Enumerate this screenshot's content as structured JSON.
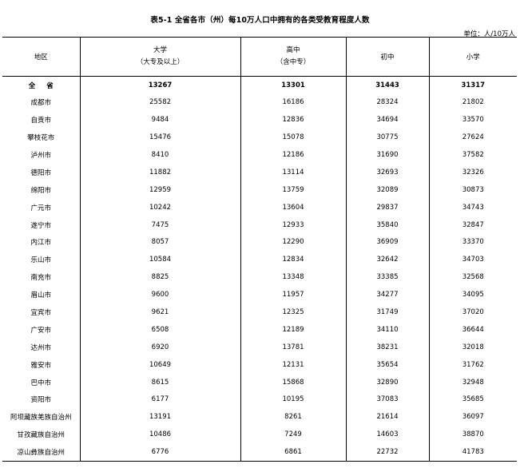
{
  "title": "表5-1 全省各市（州）每10万人口中拥有的各类受教育程度人数",
  "unit": "单位：人/10万人",
  "headers": {
    "region": "地区",
    "college_line1": "大学",
    "college_line2": "（大专及以上）",
    "senior_line1": "高中",
    "senior_line2": "（含中专）",
    "junior": "初中",
    "primary": "小学"
  },
  "rows": [
    {
      "region": "全省",
      "college": "13267",
      "senior": "13301",
      "junior": "31443",
      "primary": "31317"
    },
    {
      "region": "成都市",
      "college": "25582",
      "senior": "16186",
      "junior": "28324",
      "primary": "21802"
    },
    {
      "region": "自贡市",
      "college": "9484",
      "senior": "12836",
      "junior": "34694",
      "primary": "33570"
    },
    {
      "region": "攀枝花市",
      "college": "15476",
      "senior": "15078",
      "junior": "30775",
      "primary": "27624"
    },
    {
      "region": "泸州市",
      "college": "8410",
      "senior": "12186",
      "junior": "31690",
      "primary": "37582"
    },
    {
      "region": "德阳市",
      "college": "11882",
      "senior": "13114",
      "junior": "32693",
      "primary": "32326"
    },
    {
      "region": "绵阳市",
      "college": "12959",
      "senior": "13759",
      "junior": "32089",
      "primary": "30873"
    },
    {
      "region": "广元市",
      "college": "10242",
      "senior": "13604",
      "junior": "29837",
      "primary": "34743"
    },
    {
      "region": "遂宁市",
      "college": "7475",
      "senior": "12933",
      "junior": "35840",
      "primary": "32847"
    },
    {
      "region": "内江市",
      "college": "8057",
      "senior": "12290",
      "junior": "36909",
      "primary": "33370"
    },
    {
      "region": "乐山市",
      "college": "10584",
      "senior": "12834",
      "junior": "32642",
      "primary": "34703"
    },
    {
      "region": "南充市",
      "college": "8825",
      "senior": "13348",
      "junior": "33385",
      "primary": "32568"
    },
    {
      "region": "眉山市",
      "college": "9600",
      "senior": "11957",
      "junior": "34277",
      "primary": "34095"
    },
    {
      "region": "宜宾市",
      "college": "9621",
      "senior": "12325",
      "junior": "31749",
      "primary": "37020"
    },
    {
      "region": "广安市",
      "college": "6508",
      "senior": "12189",
      "junior": "34110",
      "primary": "36644"
    },
    {
      "region": "达州市",
      "college": "6920",
      "senior": "13781",
      "junior": "38231",
      "primary": "32018"
    },
    {
      "region": "雅安市",
      "college": "10649",
      "senior": "12131",
      "junior": "35654",
      "primary": "31762"
    },
    {
      "region": "巴中市",
      "college": "8615",
      "senior": "15868",
      "junior": "32890",
      "primary": "32948"
    },
    {
      "region": "资阳市",
      "college": "6177",
      "senior": "10195",
      "junior": "37083",
      "primary": "35685"
    },
    {
      "region": "阿坝藏族羌族自治州",
      "college": "13191",
      "senior": "8261",
      "junior": "21614",
      "primary": "36097"
    },
    {
      "region": "甘孜藏族自治州",
      "college": "10486",
      "senior": "7249",
      "junior": "14603",
      "primary": "38870"
    },
    {
      "region": "凉山彝族自治州",
      "college": "6776",
      "senior": "6861",
      "junior": "22732",
      "primary": "41783"
    }
  ]
}
